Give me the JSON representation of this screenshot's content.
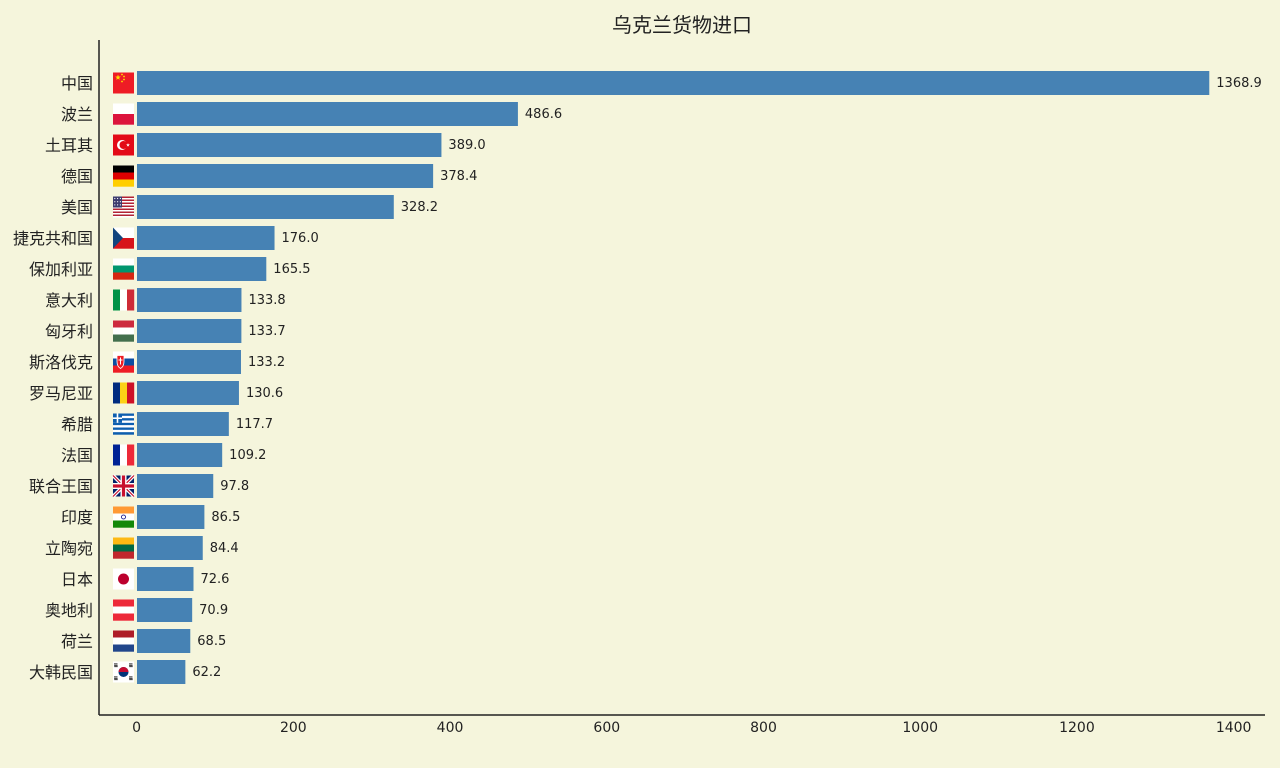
{
  "chart_data": {
    "type": "bar",
    "orientation": "horizontal",
    "title": "乌克兰货物进口",
    "xlabel": "",
    "ylabel": "",
    "xlim": [
      -48,
      1440
    ],
    "xticks": [
      0,
      200,
      400,
      600,
      800,
      1000,
      1200,
      1400
    ],
    "grid": false,
    "bar_color": "#4682b4",
    "background": "#f5f5dc",
    "categories": [
      "中国",
      "波兰",
      "土耳其",
      "德国",
      "美国",
      "捷克共和国",
      "保加利亚",
      "意大利",
      "匈牙利",
      "斯洛伐克",
      "罗马尼亚",
      "希腊",
      "法国",
      "联合王国",
      "印度",
      "立陶宛",
      "日本",
      "奥地利",
      "荷兰",
      "大韩民国"
    ],
    "values": [
      1368.9,
      486.6,
      389.0,
      378.4,
      328.2,
      176.0,
      165.5,
      133.8,
      133.7,
      133.2,
      130.6,
      117.7,
      109.2,
      97.8,
      86.5,
      84.4,
      72.6,
      70.9,
      68.5,
      62.2
    ],
    "value_labels": [
      "1368.9",
      "486.6",
      "389.0",
      "378.4",
      "328.2",
      "176.0",
      "165.5",
      "133.8",
      "133.7",
      "133.2",
      "130.6",
      "117.7",
      "109.2",
      "97.8",
      "86.5",
      "84.4",
      "72.6",
      "70.9",
      "68.5",
      "62.2"
    ],
    "flag_icons": [
      "flag-china-icon",
      "flag-poland-icon",
      "flag-turkey-icon",
      "flag-germany-icon",
      "flag-usa-icon",
      "flag-czech-icon",
      "flag-bulgaria-icon",
      "flag-italy-icon",
      "flag-hungary-icon",
      "flag-slovakia-icon",
      "flag-romania-icon",
      "flag-greece-icon",
      "flag-france-icon",
      "flag-uk-icon",
      "flag-india-icon",
      "flag-lithuania-icon",
      "flag-japan-icon",
      "flag-austria-icon",
      "flag-netherlands-icon",
      "flag-korea-icon"
    ]
  }
}
